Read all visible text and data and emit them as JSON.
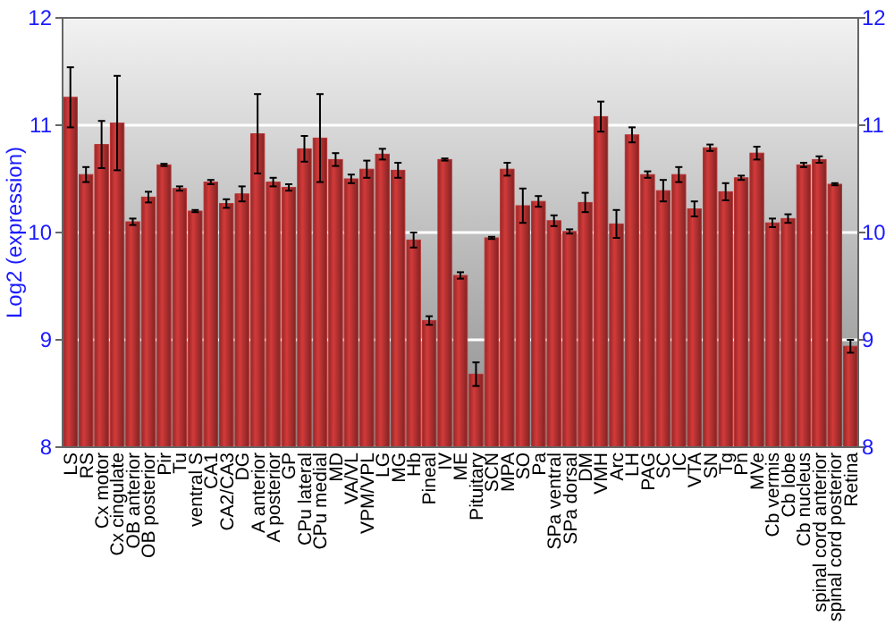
{
  "chart_data": {
    "type": "bar",
    "ylabel": "Log2 (expression)",
    "categories": [
      "LS",
      "RS",
      "Cx motor",
      "Cx cingulate",
      "OB anterior",
      "OB posterior",
      "Pir",
      "Tu",
      "ventral S",
      "CA1",
      "CA2/CA3",
      "DG",
      "A anterior",
      "A posterior",
      "GP",
      "CPu lateral",
      "CPu medial",
      "MD",
      "VA/VL",
      "VPM/VPL",
      "LG",
      "MG",
      "Hb",
      "Pineal",
      "IV",
      "ME",
      "Pituitary",
      "SCN",
      "MPA",
      "SO",
      "Pa",
      "SPa ventral",
      "SPa dorsal",
      "DM",
      "VMH",
      "Arc",
      "LH",
      "PAG",
      "SC",
      "IC",
      "VTA",
      "SN",
      "Tg",
      "Pn",
      "MVe",
      "Cb vermis",
      "Cb lobe",
      "Cb nucleus",
      "spinal cord anterior",
      "spinal cord posterior",
      "Retina"
    ],
    "values": [
      11.26,
      10.54,
      10.82,
      11.02,
      10.1,
      10.33,
      10.63,
      10.41,
      10.2,
      10.47,
      10.27,
      10.36,
      10.92,
      10.47,
      10.42,
      10.78,
      10.88,
      10.68,
      10.5,
      10.59,
      10.73,
      10.58,
      9.93,
      9.18,
      10.68,
      9.6,
      8.68,
      9.95,
      10.59,
      10.25,
      10.29,
      10.11,
      10.01,
      10.28,
      11.08,
      10.08,
      10.91,
      10.54,
      10.39,
      10.54,
      10.22,
      10.79,
      10.38,
      10.51,
      10.74,
      10.09,
      10.13,
      10.63,
      10.68,
      10.45,
      8.94
    ],
    "errors": [
      0.28,
      0.07,
      0.22,
      0.44,
      0.03,
      0.05,
      0.01,
      0.02,
      0.01,
      0.02,
      0.04,
      0.07,
      0.37,
      0.04,
      0.03,
      0.12,
      0.41,
      0.06,
      0.04,
      0.08,
      0.05,
      0.07,
      0.07,
      0.04,
      0.01,
      0.03,
      0.11,
      0.01,
      0.06,
      0.16,
      0.05,
      0.05,
      0.02,
      0.09,
      0.14,
      0.13,
      0.07,
      0.03,
      0.1,
      0.07,
      0.07,
      0.03,
      0.08,
      0.02,
      0.06,
      0.04,
      0.04,
      0.02,
      0.03,
      0.01,
      0.06
    ],
    "color": "#b83232",
    "ylim": [
      8,
      12
    ],
    "yticks": [
      8,
      9,
      10,
      11,
      12
    ],
    "y2lim": [
      8,
      12
    ],
    "y2ticks": [
      8,
      9,
      10,
      11,
      12
    ],
    "grid": "y"
  }
}
